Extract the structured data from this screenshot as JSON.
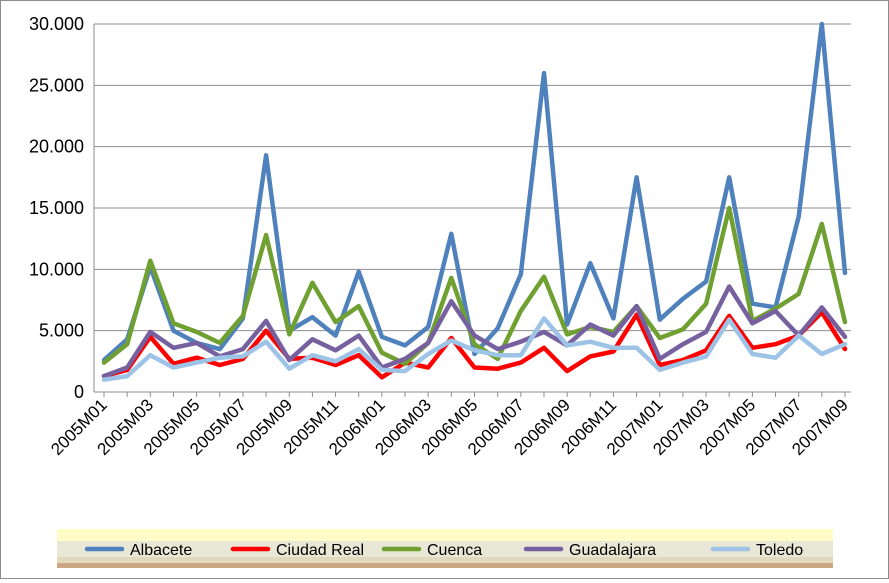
{
  "chart_data": {
    "type": "line",
    "title": "",
    "xlabel": "",
    "ylabel": "",
    "ylim": [
      0,
      30000
    ],
    "yticks": [
      0,
      5000,
      10000,
      15000,
      20000,
      25000,
      30000
    ],
    "ytick_labels": [
      "0",
      "5.000",
      "10.000",
      "15.000",
      "20.000",
      "25.000",
      "30.000"
    ],
    "x": [
      "2005M01",
      "2005M02",
      "2005M03",
      "2005M04",
      "2005M05",
      "2005M06",
      "2005M07",
      "2005M08",
      "2005M09",
      "2005M10",
      "2005M11",
      "2005M12",
      "2006M01",
      "2006M02",
      "2006M03",
      "2006M04",
      "2006M05",
      "2006M06",
      "2006M07",
      "2006M08",
      "2006M09",
      "2006M10",
      "2006M11",
      "2006M12",
      "2007M01",
      "2007M02",
      "2007M03",
      "2007M04",
      "2007M05",
      "2007M06",
      "2007M07",
      "2007M08",
      "2007M09"
    ],
    "xtick_labels": [
      "2005M01",
      "2005M03",
      "2005M05",
      "2005M07",
      "2005M09",
      "2005M11",
      "2006M01",
      "2006M03",
      "2006M05",
      "2006M07",
      "2006M09",
      "2006M11",
      "2007M01",
      "2007M03",
      "2007M05",
      "2007M07",
      "2007M09"
    ],
    "grid": "horizontal",
    "legend_position": "bottom",
    "series": [
      {
        "name": "Albacete",
        "color": "#4f81bd",
        "values": [
          2600,
          4300,
          10200,
          5000,
          4000,
          3500,
          6000,
          19300,
          5000,
          6100,
          4600,
          9800,
          4500,
          3800,
          5300,
          12900,
          3100,
          5200,
          9600,
          26000,
          5500,
          10500,
          6000,
          17500,
          5900,
          7600,
          9000,
          17500,
          7200,
          6900,
          14300,
          30000,
          9700
        ]
      },
      {
        "name": "Ciudad Real",
        "color": "#ff0000",
        "values": [
          1300,
          1800,
          4500,
          2300,
          2800,
          2200,
          2700,
          5000,
          2700,
          2800,
          2200,
          3000,
          1200,
          2400,
          2000,
          4400,
          2000,
          1900,
          2400,
          3600,
          1700,
          2900,
          3300,
          6300,
          2200,
          2600,
          3400,
          6200,
          3600,
          3900,
          4600,
          6500,
          3500
        ]
      },
      {
        "name": "Cuenca",
        "color": "#70a031",
        "values": [
          2400,
          3900,
          10700,
          5600,
          4900,
          4000,
          6200,
          12800,
          4700,
          8900,
          5700,
          7000,
          3200,
          2300,
          4000,
          9300,
          3900,
          2700,
          6600,
          9400,
          4700,
          5300,
          4900,
          7000,
          4400,
          5100,
          7200,
          15000,
          5800,
          6800,
          8000,
          13700,
          5700
        ]
      },
      {
        "name": "Guadalajara",
        "color": "#7660a0",
        "values": [
          1300,
          2000,
          4900,
          3600,
          4000,
          2900,
          3500,
          5800,
          2600,
          4300,
          3400,
          4600,
          2000,
          2700,
          4000,
          7400,
          4600,
          3500,
          4100,
          4900,
          3800,
          5500,
          4600,
          7000,
          2700,
          3900,
          4900,
          8600,
          5600,
          6600,
          4600,
          6900,
          4500
        ]
      },
      {
        "name": "Toledo",
        "color": "#9dc3e6",
        "values": [
          1000,
          1300,
          3000,
          2000,
          2400,
          2800,
          2900,
          4100,
          1900,
          3000,
          2500,
          3500,
          1800,
          1700,
          3100,
          4200,
          3400,
          3000,
          3000,
          6000,
          3800,
          4100,
          3600,
          3600,
          1800,
          2400,
          2900,
          5900,
          3100,
          2800,
          4600,
          3100,
          3900
        ]
      }
    ]
  }
}
